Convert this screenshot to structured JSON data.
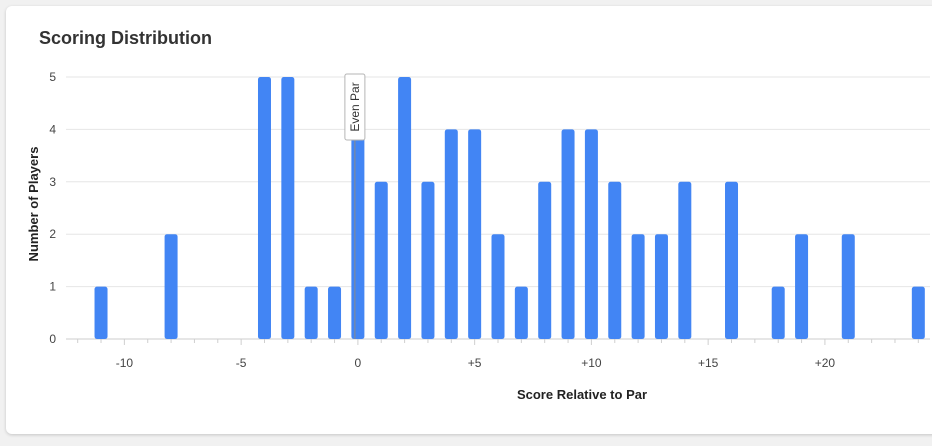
{
  "card": {
    "title": "Scoring Distribution"
  },
  "chart_data": {
    "type": "bar",
    "title": "Scoring Distribution",
    "xlabel": "Score Relative to Par",
    "ylabel": "Number of Players",
    "xlim": [
      -12.5,
      24.5
    ],
    "ylim": [
      0,
      5
    ],
    "x_ticks": [
      -10,
      -5,
      0,
      5,
      10,
      15,
      20
    ],
    "x_tick_labels": [
      "-10",
      "-5",
      "0",
      "+5",
      "+10",
      "+15",
      "+20"
    ],
    "y_ticks": [
      0,
      1,
      2,
      3,
      4,
      5
    ],
    "grid": true,
    "bar_color": "#4285f4",
    "annotation": {
      "x": 0,
      "label": "Even Par"
    },
    "points": [
      {
        "x": -11,
        "y": 1
      },
      {
        "x": -8,
        "y": 2
      },
      {
        "x": -4,
        "y": 5
      },
      {
        "x": -3,
        "y": 5
      },
      {
        "x": -2,
        "y": 1
      },
      {
        "x": -1,
        "y": 1
      },
      {
        "x": 0,
        "y": 4
      },
      {
        "x": 1,
        "y": 3
      },
      {
        "x": 2,
        "y": 5
      },
      {
        "x": 3,
        "y": 3
      },
      {
        "x": 4,
        "y": 4
      },
      {
        "x": 5,
        "y": 4
      },
      {
        "x": 6,
        "y": 2
      },
      {
        "x": 7,
        "y": 1
      },
      {
        "x": 8,
        "y": 3
      },
      {
        "x": 9,
        "y": 4
      },
      {
        "x": 10,
        "y": 4
      },
      {
        "x": 11,
        "y": 3
      },
      {
        "x": 12,
        "y": 2
      },
      {
        "x": 13,
        "y": 2
      },
      {
        "x": 14,
        "y": 3
      },
      {
        "x": 16,
        "y": 3
      },
      {
        "x": 18,
        "y": 1
      },
      {
        "x": 19,
        "y": 2
      },
      {
        "x": 21,
        "y": 2
      },
      {
        "x": 24,
        "y": 1
      }
    ]
  }
}
